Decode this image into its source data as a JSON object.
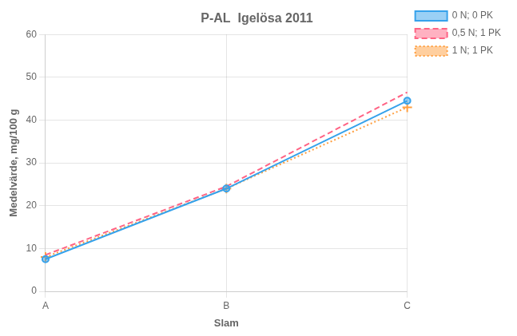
{
  "chart_data": {
    "type": "line",
    "title": "P-AL  Igelösa 2011",
    "xlabel": "Slam",
    "ylabel": "Medelvärde, mg/100 g",
    "categories": [
      "A",
      "B",
      "C"
    ],
    "series": [
      {
        "name": "0 N; 0 PK",
        "values": [
          7.5,
          24.0,
          44.5
        ],
        "line_style": "solid",
        "marker": "circle"
      },
      {
        "name": "0,5 N; 1 PK",
        "values": [
          8.5,
          24.5,
          46.5
        ],
        "line_style": "dashed",
        "marker": "none"
      },
      {
        "name": "1 N; 1 PK",
        "values": [
          8.0,
          24.0,
          43.0
        ],
        "line_style": "dotted",
        "marker": "plus"
      }
    ],
    "ylim": [
      0,
      60
    ],
    "yticks": [
      0,
      10,
      20,
      30,
      40,
      50,
      60
    ],
    "grid": true,
    "legend": "right"
  }
}
